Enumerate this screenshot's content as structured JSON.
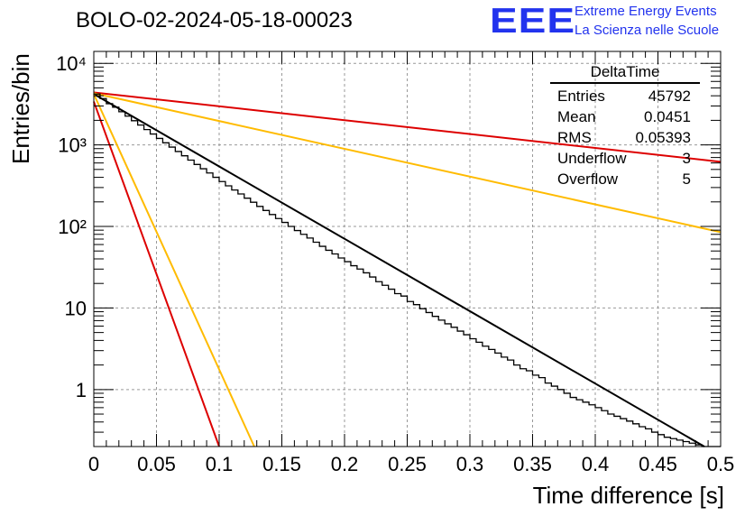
{
  "header": {
    "title": "BOLO-02-2024-05-18-00023",
    "logo_text": "EEE",
    "org_line1": "Extreme Energy Events",
    "org_line2": "La Scienza nelle Scuole"
  },
  "stats_box": {
    "name": "DeltaTime",
    "rows": [
      {
        "label": "Entries",
        "value": "45792"
      },
      {
        "label": "Mean",
        "value": "0.0451"
      },
      {
        "label": "RMS",
        "value": "0.05393"
      },
      {
        "label": "Underflow",
        "value": "3"
      },
      {
        "label": "Overflow",
        "value": "5"
      }
    ]
  },
  "chart_data": {
    "type": "line",
    "title": "BOLO-02-2024-05-18-00023",
    "xlabel": "Time difference [s]",
    "ylabel": "Entries/bin",
    "xlim": [
      0,
      0.5
    ],
    "ylim": [
      0.2,
      14000
    ],
    "yscale": "log",
    "grid": true,
    "x_ticks": [
      "0",
      "0.05",
      "0.1",
      "0.15",
      "0.2",
      "0.25",
      "0.3",
      "0.35",
      "0.4",
      "0.45",
      "0.5"
    ],
    "y_ticks": [
      "1",
      "10",
      "10²",
      "10³",
      "10⁴"
    ],
    "y_tick_values": [
      1,
      10,
      100,
      1000,
      10000
    ],
    "histogram": {
      "name": "DeltaTime",
      "bin_width": 0.005,
      "color": "#000000",
      "values": [
        4200,
        3700,
        3200,
        2900,
        2550,
        2250,
        1980,
        1750,
        1540,
        1360,
        1200,
        1060,
        940,
        830,
        735,
        650,
        575,
        510,
        452,
        400,
        355,
        315,
        280,
        250,
        222,
        198,
        176,
        157,
        140,
        125,
        112,
        100,
        89,
        80,
        72,
        64,
        57,
        51,
        46,
        41,
        37,
        33,
        30,
        27,
        24,
        21,
        19,
        17,
        15,
        14,
        12,
        11,
        9.8,
        8.8,
        7.9,
        7.1,
        6.4,
        5.8,
        5.2,
        4.7,
        4.2,
        3.8,
        3.4,
        3.1,
        2.8,
        2.5,
        2.3,
        2.0,
        1.8,
        1.7,
        1.5,
        1.4,
        1.2,
        1.1,
        1.0,
        0.9,
        0.8,
        0.75,
        0.7,
        0.65,
        0.6,
        0.55,
        0.5,
        0.47,
        0.44,
        0.41,
        0.38,
        0.35,
        0.33,
        0.3,
        0.28,
        0.26,
        0.25,
        0.24,
        0.23,
        0.22,
        0.21,
        0.2,
        0.2,
        0.2
      ]
    },
    "series": [
      {
        "color": "#000000",
        "start": 4200,
        "end_x": 0.487,
        "end": 0.2
      },
      {
        "color": "#dd0000",
        "start": 4400,
        "end_x": 0.5,
        "end": 620
      },
      {
        "color": "#ffbb00",
        "start": 4300,
        "end_x": 0.5,
        "end": 85
      },
      {
        "color": "#ffbb00",
        "start": 4200,
        "end_x": 0.128,
        "end": 0.2
      },
      {
        "color": "#dd0000",
        "start": 3400,
        "end_x": 0.1,
        "end": 0.2
      }
    ]
  }
}
